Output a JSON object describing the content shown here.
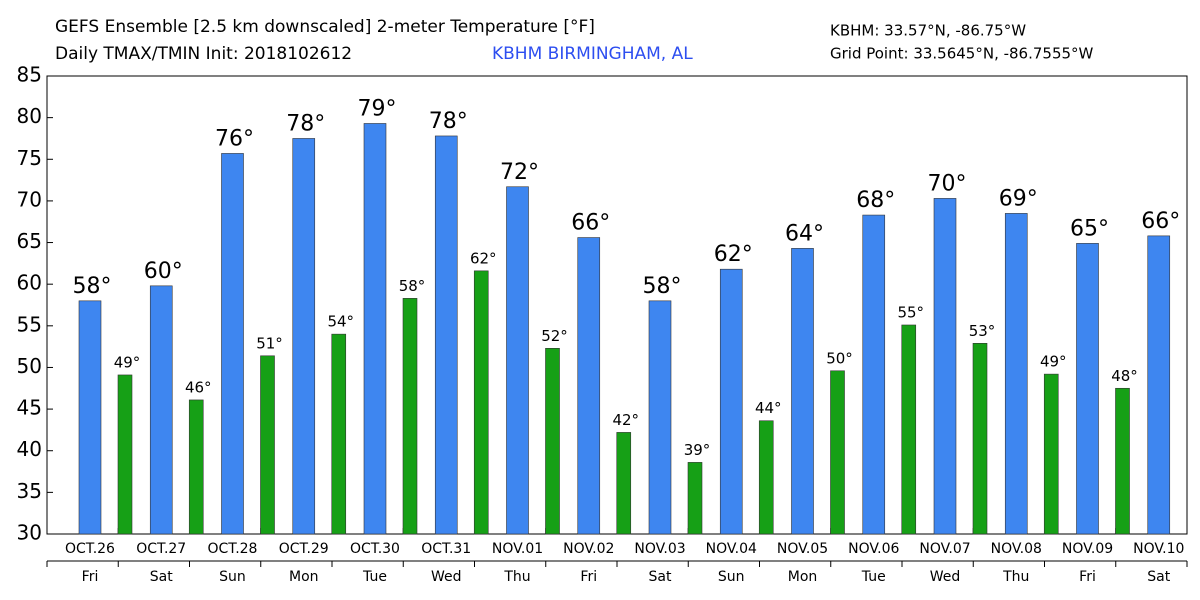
{
  "chart_data": {
    "type": "bar",
    "title": "GEFS Ensemble [2.5 km downscaled] 2-meter Temperature [°F]",
    "subtitle": "Daily TMAX/TMIN Init: 2018102612",
    "location": "KBHM BIRMINGHAM, AL",
    "station": "KBHM: 33.57°N, -86.75°W",
    "grid_point": "Grid Point: 33.5645°N, -86.7555°W",
    "categories": [
      "OCT.26",
      "OCT.27",
      "OCT.28",
      "OCT.29",
      "OCT.30",
      "OCT.31",
      "NOV.01",
      "NOV.02",
      "NOV.03",
      "NOV.04",
      "NOV.05",
      "NOV.06",
      "NOV.07",
      "NOV.08",
      "NOV.09",
      "NOV.10"
    ],
    "days": [
      "Fri",
      "Sat",
      "Sun",
      "Mon",
      "Tue",
      "Wed",
      "Thu",
      "Fri",
      "Sat",
      "Sun",
      "Mon",
      "Tue",
      "Wed",
      "Thu",
      "Fri",
      "Sat"
    ],
    "series": [
      {
        "color": "#3e86f0",
        "values": [
          58.0,
          59.8,
          75.7,
          77.5,
          79.3,
          77.8,
          71.7,
          65.6,
          58.0,
          61.8,
          64.3,
          68.3,
          70.3,
          68.5,
          64.9,
          65.8
        ],
        "value_labels": [
          "58°",
          "60°",
          "76°",
          "78°",
          "79°",
          "78°",
          "72°",
          "66°",
          "58°",
          "62°",
          "64°",
          "68°",
          "70°",
          "69°",
          "65°",
          "66°"
        ]
      },
      {
        "color": "#16a016",
        "values": [
          49.1,
          46.1,
          51.4,
          54.0,
          58.3,
          61.6,
          52.3,
          42.2,
          38.6,
          43.6,
          49.6,
          55.1,
          52.9,
          49.2,
          47.5,
          null
        ],
        "value_labels": [
          "49°",
          "46°",
          "51°",
          "54°",
          "58°",
          "62°",
          "52°",
          "42°",
          "39°",
          "44°",
          "50°",
          "55°",
          "53°",
          "49°",
          "48°",
          null
        ]
      }
    ],
    "ylim": [
      30,
      85
    ],
    "yticks": [
      30,
      35,
      40,
      45,
      50,
      55,
      60,
      65,
      70,
      75,
      80,
      85
    ]
  }
}
